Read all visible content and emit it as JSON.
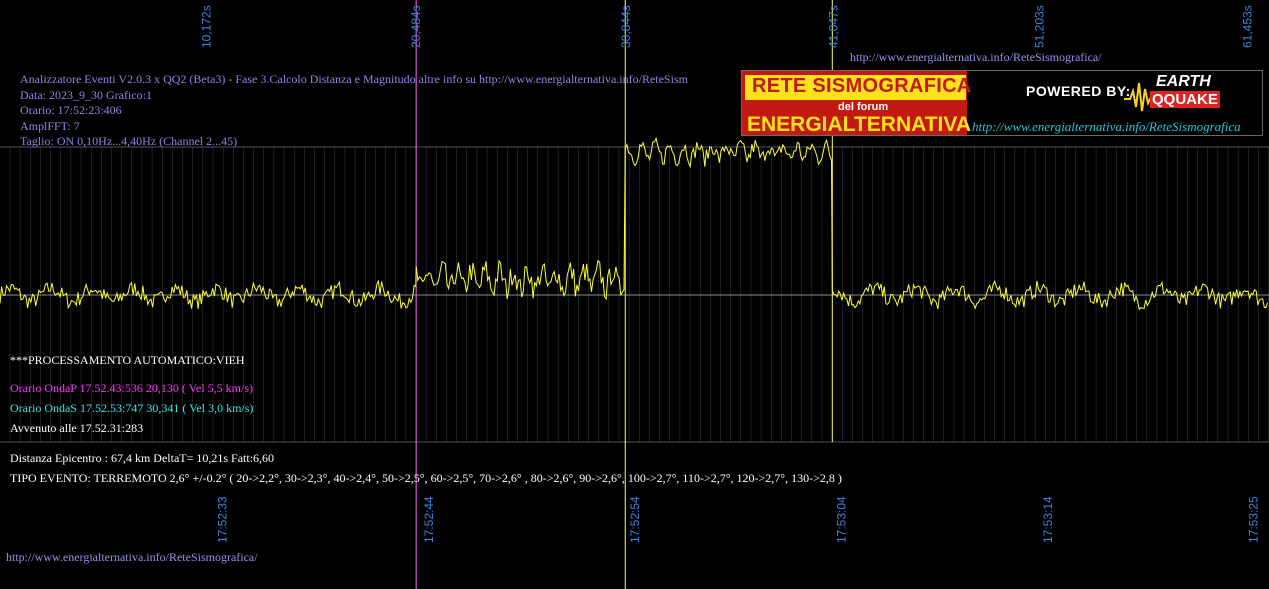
{
  "header": {
    "title_line": "Analizzatore Eventi V2.0.3 x QQ2 (Beta3) - Fase 3.Calcolo Distanza e Magnitudo altre info su http://www.energialternativa.info/ReteSism",
    "data_line": "Data: 2023_9_30 Grafico:1",
    "orario_line": "Orario: 17:52:23:406",
    "ampl_line": "AmplFFT: 7",
    "taglio_line": "Taglio: ON 0,10Hz...4,40Hz       (Channel 2...45)"
  },
  "url_top": "http://www.energialternativa.info/ReteSismografica/",
  "url_bottom": "http://www.energialternativa.info/ReteSismografica/",
  "banner": {
    "line1": "RETE SISMOGRAFICA",
    "line2": "del forum",
    "line3": "ENERGIALTERNATIVA",
    "powered": "POWERED BY:",
    "earth": "EARTH",
    "quake": "QQUAKE",
    "url": "http://www.energialternativa.info/ReteSismografica"
  },
  "processing": {
    "auto": "***PROCESSAMENTO AUTOMATICO:VIEH",
    "onda_p": "Orario OndaP 17.52.43:536  20,130 ( Vel 5,5 km/s)",
    "onda_s": "Orario OndaS 17.52.53:747  30,341 ( Vel 3,0 km/s)",
    "avvenuto": "Avvenuto alle 17.52.31:283",
    "distanza": "Distanza Epicentro : 67,4 km DeltaT= 10,21s  Fatt:6,60",
    "tipo": "TIPO EVENTO: TERREMOTO 2,6° +/-0.2° ( 20->2,2°, 30->2,3°, 40->2,4°, 50->2,5°, 60->2,5°, 70->2,6° , 80->2,6°, 90->2,6°, 100->2,7°, 110->2,7°, 120->2,7°, 130->2,8 )"
  },
  "colors": {
    "signal": "#ffff33",
    "onda_p": "#ff33ff",
    "onda_s": "#33e6e6",
    "marker_p": "#ff66ff",
    "marker_s": "#ffff66",
    "grid": "#707070",
    "axis": "#3f84e0",
    "info": "#8e86e8"
  },
  "chart_data": {
    "type": "line",
    "title": "",
    "xlabel": "",
    "ylabel": "",
    "x_range_seconds": [
      0,
      62.5
    ],
    "top_ticks": [
      {
        "x": 10.172,
        "label": "10,172s"
      },
      {
        "x": 20.484,
        "label": "20,484s"
      },
      {
        "x": 30.844,
        "label": "30,844s"
      },
      {
        "x": 41.047,
        "label": "41,047s"
      },
      {
        "x": 51.203,
        "label": "51,203s"
      },
      {
        "x": 61.453,
        "label": "61,453s"
      }
    ],
    "bottom_ticks": [
      {
        "x": 10.96,
        "label": "17:52:33"
      },
      {
        "x": 21.13,
        "label": "17:52:44"
      },
      {
        "x": 31.29,
        "label": "17:52:54"
      },
      {
        "x": 41.45,
        "label": "17:53:04"
      },
      {
        "x": 51.62,
        "label": "17:53:14"
      },
      {
        "x": 61.75,
        "label": "17:53:25"
      }
    ],
    "markers": [
      {
        "x": 20.5,
        "name": "P"
      },
      {
        "x": 30.8,
        "name": "S"
      },
      {
        "x": 41.0,
        "name": "E"
      }
    ],
    "segments": [
      {
        "from": 0,
        "to": 20.5,
        "baseline": 0,
        "amp": 0.12
      },
      {
        "from": 20.5,
        "to": 30.8,
        "baseline": 0.22,
        "amp": 0.18
      },
      {
        "from": 30.8,
        "to": 41.0,
        "baseline": 2.1,
        "amp": 0.12
      },
      {
        "from": 41.0,
        "to": 62.5,
        "baseline": 0,
        "amp": 0.12
      }
    ],
    "y_range": [
      -0.6,
      2.3
    ],
    "grid": true
  }
}
